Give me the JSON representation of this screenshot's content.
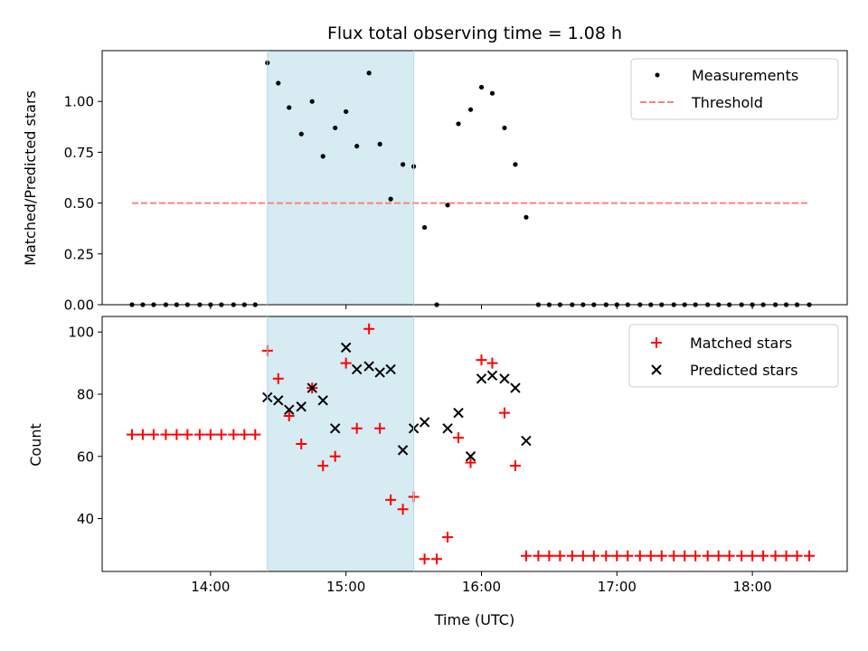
{
  "chart_data": [
    {
      "type": "scatter",
      "title": "Flux total observing time = 1.08 h",
      "ylabel": "Matched/Predicted stars",
      "xlabel": "",
      "x_unit": "hours UTC",
      "xlim": [
        13.2,
        18.7
      ],
      "ylim": [
        0,
        1.25
      ],
      "yticks": [
        0.0,
        0.25,
        0.5,
        0.75,
        1.0
      ],
      "ytick_labels": [
        "0.00",
        "0.25",
        "0.50",
        "0.75",
        "1.00"
      ],
      "xticks": [
        14,
        15,
        16,
        17,
        18
      ],
      "xtick_labels": [
        "",
        "",
        "",
        "",
        ""
      ],
      "legend_position": "top-right",
      "shaded_span": {
        "x0": 14.42,
        "x1": 15.5,
        "color": "#add8e6"
      },
      "series": [
        {
          "name": "Measurements",
          "marker": "dot",
          "color": "#000000",
          "x": [
            13.42,
            13.5,
            13.58,
            13.67,
            13.75,
            13.83,
            13.92,
            14.0,
            14.08,
            14.17,
            14.25,
            14.33,
            14.42,
            14.5,
            14.58,
            14.67,
            14.75,
            14.83,
            14.92,
            15.0,
            15.08,
            15.17,
            15.25,
            15.33,
            15.42,
            15.5,
            15.58,
            15.67,
            15.75,
            15.83,
            15.92,
            16.0,
            16.08,
            16.17,
            16.25,
            16.33,
            16.42,
            16.5,
            16.58,
            16.67,
            16.75,
            16.83,
            16.92,
            17.0,
            17.08,
            17.17,
            17.25,
            17.33,
            17.42,
            17.5,
            17.58,
            17.67,
            17.75,
            17.83,
            17.92,
            18.0,
            18.08,
            18.17,
            18.25,
            18.33,
            18.42
          ],
          "y": [
            0,
            0,
            0,
            0,
            0,
            0,
            0,
            0,
            0,
            0,
            0,
            0,
            1.19,
            1.09,
            0.97,
            0.84,
            1.0,
            0.73,
            0.87,
            0.95,
            0.78,
            1.14,
            0.79,
            0.52,
            0.69,
            0.68,
            0.38,
            0,
            0.49,
            0.89,
            0.96,
            1.07,
            1.04,
            0.87,
            0.69,
            0.43,
            0,
            0,
            0,
            0,
            0,
            0,
            0,
            0,
            0,
            0,
            0,
            0,
            0,
            0,
            0,
            0,
            0,
            0,
            0,
            0,
            0,
            0,
            0,
            0,
            0
          ]
        },
        {
          "name": "Threshold",
          "marker": "dashed-line",
          "color": "#ff8080",
          "x": [
            13.42,
            18.42
          ],
          "y": [
            0.5,
            0.5
          ]
        }
      ]
    },
    {
      "type": "scatter",
      "title": "",
      "ylabel": "Count",
      "xlabel": "Time (UTC)",
      "x_unit": "hours UTC",
      "xlim": [
        13.2,
        18.7
      ],
      "ylim": [
        23,
        105
      ],
      "yticks": [
        40,
        60,
        80,
        100
      ],
      "ytick_labels": [
        "40",
        "60",
        "80",
        "100"
      ],
      "xticks": [
        14,
        15,
        16,
        17,
        18
      ],
      "xtick_labels": [
        "14:00",
        "15:00",
        "16:00",
        "17:00",
        "18:00"
      ],
      "legend_position": "top-right",
      "shaded_span": {
        "x0": 14.42,
        "x1": 15.5,
        "color": "#add8e6"
      },
      "series": [
        {
          "name": "Matched stars",
          "marker": "plus",
          "color": "#ff0000",
          "x": [
            13.42,
            13.5,
            13.58,
            13.67,
            13.75,
            13.83,
            13.92,
            14.0,
            14.08,
            14.17,
            14.25,
            14.33,
            14.42,
            14.5,
            14.58,
            14.67,
            14.75,
            14.83,
            14.92,
            15.0,
            15.08,
            15.17,
            15.25,
            15.33,
            15.42,
            15.5,
            15.58,
            15.67,
            15.75,
            15.83,
            15.92,
            16.0,
            16.08,
            16.17,
            16.25,
            16.33,
            16.42,
            16.5,
            16.58,
            16.67,
            16.75,
            16.83,
            16.92,
            17.0,
            17.08,
            17.17,
            17.25,
            17.33,
            17.42,
            17.5,
            17.58,
            17.67,
            17.75,
            17.83,
            17.92,
            18.0,
            18.08,
            18.17,
            18.25,
            18.33,
            18.42
          ],
          "y": [
            67,
            67,
            67,
            67,
            67,
            67,
            67,
            67,
            67,
            67,
            67,
            67,
            94,
            85,
            73,
            64,
            82,
            57,
            60,
            90,
            69,
            101,
            69,
            46,
            43,
            47,
            27,
            27,
            34,
            66,
            58,
            91,
            90,
            74,
            57,
            28,
            28,
            28,
            28,
            28,
            28,
            28,
            28,
            28,
            28,
            28,
            28,
            28,
            28,
            28,
            28,
            28,
            28,
            28,
            28,
            28,
            28,
            28,
            28,
            28,
            28
          ]
        },
        {
          "name": "Predicted stars",
          "marker": "x",
          "color": "#000000",
          "x": [
            14.42,
            14.5,
            14.58,
            14.67,
            14.75,
            14.83,
            14.92,
            15.0,
            15.08,
            15.17,
            15.25,
            15.33,
            15.42,
            15.5,
            15.58,
            15.75,
            15.83,
            15.92,
            16.0,
            16.08,
            16.17,
            16.25,
            16.33
          ],
          "y": [
            79,
            78,
            75,
            76,
            82,
            78,
            69,
            95,
            88,
            89,
            87,
            88,
            62,
            69,
            71,
            69,
            74,
            60,
            85,
            86,
            85,
            82,
            65
          ]
        }
      ]
    }
  ]
}
